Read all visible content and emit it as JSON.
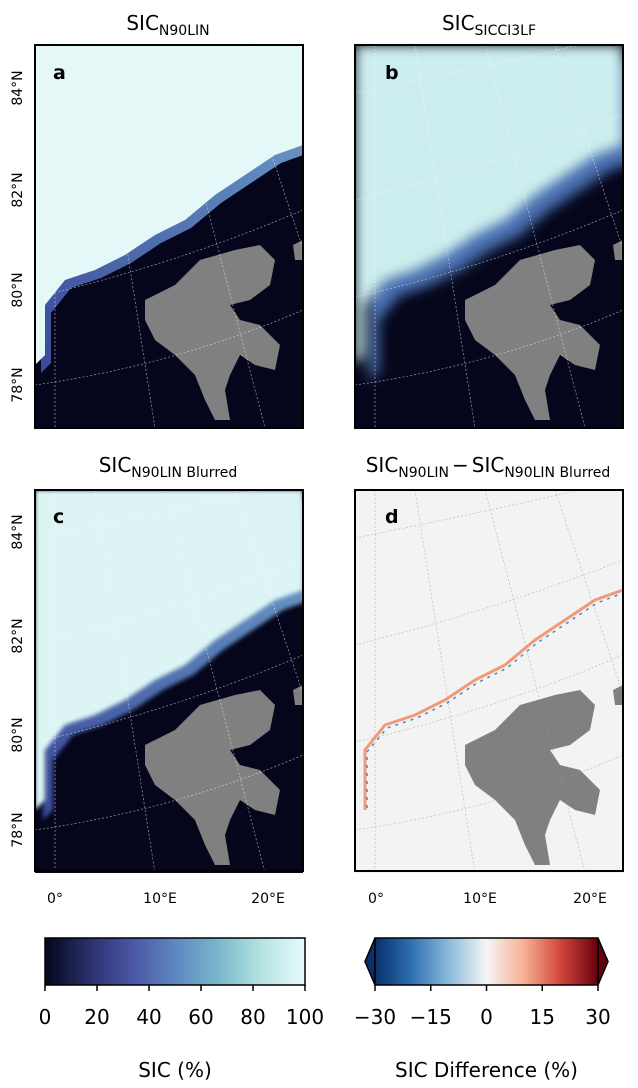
{
  "panels": [
    {
      "letter": "a",
      "title_parts": [
        {
          "main": "SIC",
          "sub": "N90LIN"
        }
      ]
    },
    {
      "letter": "b",
      "title_parts": [
        {
          "main": "SIC",
          "sub": "SICCI3LF"
        }
      ]
    },
    {
      "letter": "c",
      "title_parts": [
        {
          "main": "SIC",
          "sub": "N90LIN Blurred"
        }
      ]
    },
    {
      "letter": "d",
      "title_parts": [
        {
          "main": "SIC",
          "sub": "N90LIN"
        },
        {
          "main": "SIC",
          "sub": "N90LIN Blurred"
        }
      ],
      "operator": "−"
    }
  ],
  "lat_labels": [
    "84°N",
    "82°N",
    "80°N",
    "78°N"
  ],
  "lon_labels": [
    "0°",
    "10°E",
    "20°E"
  ],
  "colorbars": [
    {
      "label": "SIC (%)",
      "lim": [
        0,
        100
      ],
      "ticks": [
        0,
        20,
        40,
        60,
        80,
        100
      ],
      "colors": [
        "#04051a",
        "#2a2f6b",
        "#4a55a6",
        "#5d87c0",
        "#79b8cc",
        "#b6e3e3",
        "#e8fbfb"
      ]
    },
    {
      "label": "SIC Difference (%)",
      "lim": [
        -30,
        30
      ],
      "ticks": [
        {
          "value": -30,
          "label": "−30"
        },
        {
          "value": -15,
          "label": "−15"
        },
        0,
        15,
        30
      ],
      "colors": [
        "#08306b",
        "#2f72b2",
        "#8cbcda",
        "#f5f5f5",
        "#f7b193",
        "#d0463a",
        "#67000d"
      ]
    }
  ]
}
